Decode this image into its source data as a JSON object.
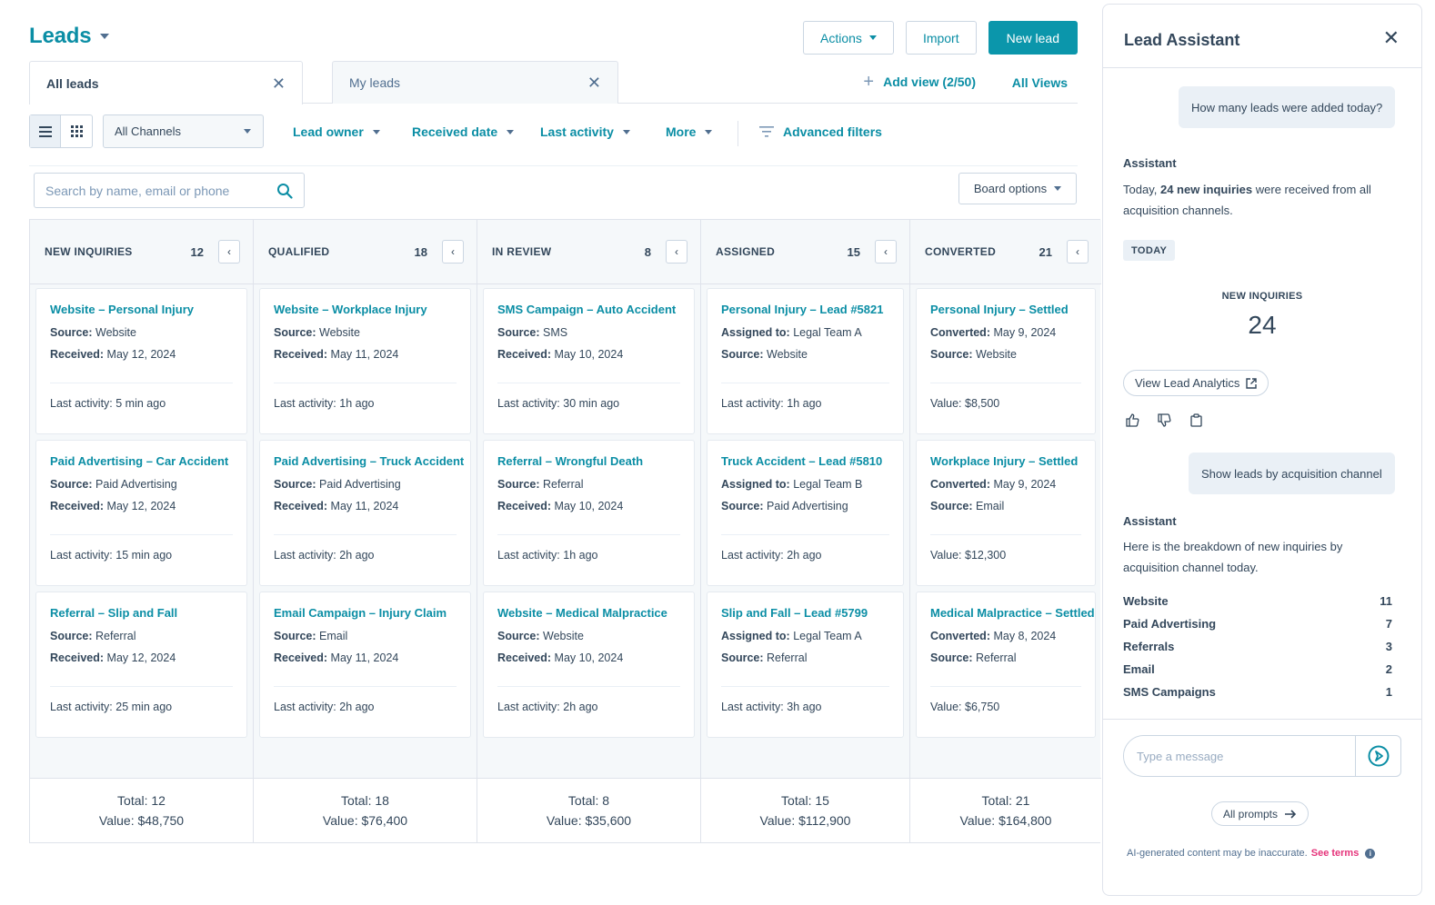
{
  "header": {
    "title": "Leads",
    "actions_label": "Actions",
    "import_label": "Import",
    "new_lead_label": "New lead"
  },
  "tabs": [
    {
      "label": "All leads",
      "active": true
    },
    {
      "label": "My leads",
      "active": false
    }
  ],
  "views": {
    "add_view_label": "Add view (2/50)",
    "all_views_label": "All Views"
  },
  "filters": {
    "channels_value": "All Channels",
    "lead_owner": "Lead owner",
    "received_date": "Received date",
    "last_activity": "Last activity",
    "more": "More",
    "advanced": "Advanced filters"
  },
  "search": {
    "placeholder": "Search by name, email or phone"
  },
  "board_options_label": "Board options",
  "columns": [
    {
      "name": "NEW INQUIRIES",
      "count": "12",
      "cards": [
        {
          "title": "Website – Personal Injury",
          "l1_label": "Source:",
          "l1_value": "Website",
          "l2_label": "Received:",
          "l2_value": "May 12, 2024",
          "activity": "Last activity: 5 min ago"
        },
        {
          "title": "Paid Advertising – Car Accident",
          "l1_label": "Source:",
          "l1_value": "Paid Advertising",
          "l2_label": "Received:",
          "l2_value": "May 12, 2024",
          "activity": "Last activity: 15 min ago"
        },
        {
          "title": "Referral – Slip and Fall",
          "l1_label": "Source:",
          "l1_value": "Referral",
          "l2_label": "Received:",
          "l2_value": "May 12, 2024",
          "activity": "Last activity: 25 min ago"
        }
      ],
      "total": "Total: 12",
      "value": "Value: $48,750"
    },
    {
      "name": "QUALIFIED",
      "count": "18",
      "cards": [
        {
          "title": "Website – Workplace Injury",
          "l1_label": "Source:",
          "l1_value": "Website",
          "l2_label": "Received:",
          "l2_value": "May 11, 2024",
          "activity": "Last activity: 1h ago"
        },
        {
          "title": "Paid Advertising – Truck Accident",
          "l1_label": "Source:",
          "l1_value": "Paid Advertising",
          "l2_label": "Received:",
          "l2_value": "May 11, 2024",
          "activity": "Last activity: 2h ago"
        },
        {
          "title": "Email Campaign – Injury Claim",
          "l1_label": "Source:",
          "l1_value": "Email",
          "l2_label": "Received:",
          "l2_value": "May 11, 2024",
          "activity": "Last activity: 2h ago"
        }
      ],
      "total": "Total: 18",
      "value": "Value: $76,400"
    },
    {
      "name": "IN REVIEW",
      "count": "8",
      "cards": [
        {
          "title": "SMS Campaign – Auto Accident",
          "l1_label": "Source:",
          "l1_value": "SMS",
          "l2_label": "Received:",
          "l2_value": "May 10, 2024",
          "activity": "Last activity: 30 min ago"
        },
        {
          "title": "Referral – Wrongful Death",
          "l1_label": "Source:",
          "l1_value": "Referral",
          "l2_label": "Received:",
          "l2_value": "May 10, 2024",
          "activity": "Last activity: 1h ago"
        },
        {
          "title": "Website – Medical Malpractice",
          "l1_label": "Source:",
          "l1_value": "Website",
          "l2_label": "Received:",
          "l2_value": "May 10, 2024",
          "activity": "Last activity: 2h ago"
        }
      ],
      "total": "Total: 8",
      "value": "Value: $35,600"
    },
    {
      "name": "ASSIGNED",
      "count": "15",
      "cards": [
        {
          "title": "Personal Injury – Lead #5821",
          "l1_label": "Assigned to:",
          "l1_value": "Legal Team A",
          "l2_label": "Source:",
          "l2_value": "Website",
          "activity": "Last activity: 1h ago"
        },
        {
          "title": "Truck Accident – Lead #5810",
          "l1_label": "Assigned to:",
          "l1_value": "Legal Team B",
          "l2_label": "Source:",
          "l2_value": "Paid Advertising",
          "activity": "Last activity: 2h ago"
        },
        {
          "title": "Slip and Fall – Lead #5799",
          "l1_label": "Assigned to:",
          "l1_value": "Legal Team A",
          "l2_label": "Source:",
          "l2_value": "Referral",
          "activity": "Last activity: 3h ago"
        }
      ],
      "total": "Total: 15",
      "value": "Value: $112,900"
    },
    {
      "name": "CONVERTED",
      "count": "21",
      "cards": [
        {
          "title": "Personal Injury – Settled",
          "l1_label": "Converted:",
          "l1_value": "May 9, 2024",
          "l2_label": "Source:",
          "l2_value": "Website",
          "activity": "Value: $8,500"
        },
        {
          "title": "Workplace Injury – Settled",
          "l1_label": "Converted:",
          "l1_value": "May 9, 2024",
          "l2_label": "Source:",
          "l2_value": "Email",
          "activity": "Value: $12,300"
        },
        {
          "title": "Medical Malpractice – Settled",
          "l1_label": "Converted:",
          "l1_value": "May 8, 2024",
          "l2_label": "Source:",
          "l2_value": "Referral",
          "activity": "Value: $6,750"
        }
      ],
      "total": "Total: 21",
      "value": "Value: $164,800"
    }
  ],
  "assistant": {
    "title": "Lead Assistant",
    "user_msg_1": "How many leads were added today?",
    "label_1": "Assistant",
    "reply_1_pre": "Today,",
    "reply_1_bold": "24 new inquiries",
    "reply_1_post": "were received from all acquisition channels.",
    "today_badge": "TODAY",
    "stat_label": "NEW INQUIRIES",
    "stat_value": "24",
    "analytics_label": "View Lead Analytics",
    "user_msg_2": "Show leads by acquisition channel",
    "label_2": "Assistant",
    "reply_2": "Here is the breakdown of new inquiries by acquisition channel today.",
    "breakdown": [
      {
        "channel": "Website",
        "count": "11"
      },
      {
        "channel": "Paid Advertising",
        "count": "7"
      },
      {
        "channel": "Referrals",
        "count": "3"
      },
      {
        "channel": "Email",
        "count": "2"
      },
      {
        "channel": "SMS Campaigns",
        "count": "1"
      }
    ],
    "input_placeholder": "Type a message",
    "all_prompts_label": "All prompts",
    "disclaimer": "AI-generated content may be inaccurate.",
    "see_terms": "See terms"
  },
  "colors": {
    "accent": "#0b8ea5",
    "primary_button": "#0b96ab",
    "text": "#33475b",
    "terms_link": "#e5337a"
  }
}
